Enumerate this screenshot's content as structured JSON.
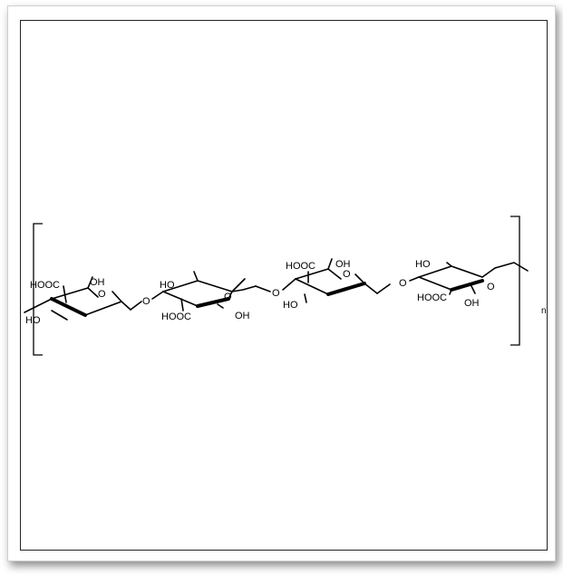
{
  "labels": {
    "hooc": "HOOC",
    "oh": "OH",
    "ho": "HO",
    "o": "O",
    "n": "n"
  }
}
